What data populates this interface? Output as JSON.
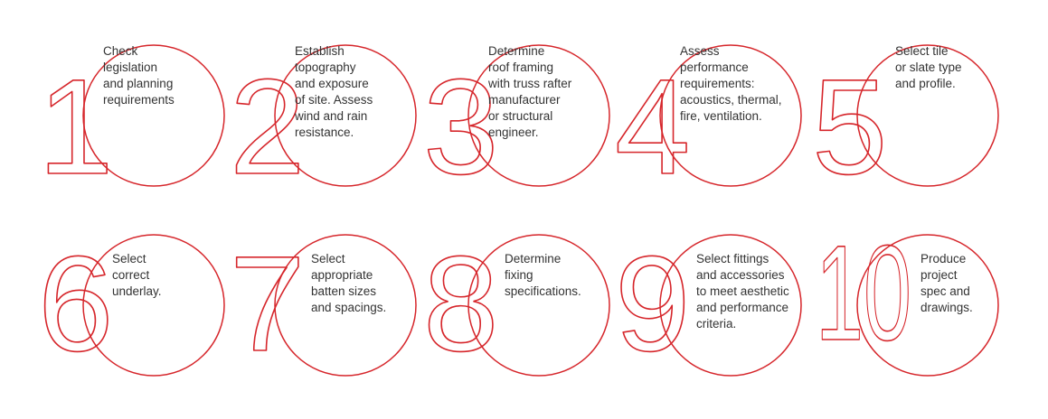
{
  "steps": [
    {
      "number": "1",
      "text": "Check\nlegislation\nand planning\nrequirements"
    },
    {
      "number": "2",
      "text": "Establish\ntopography\nand exposure\nof site. Assess\nwind and rain\nresistance."
    },
    {
      "number": "3",
      "text": "Determine\nroof framing\nwith truss rafter\nmanufacturer\nor structural\nengineer."
    },
    {
      "number": "4",
      "text": "Assess\nperformance\nrequirements:\nacoustics, thermal,\nfire, ventilation."
    },
    {
      "number": "5",
      "text": "Select tile\nor slate type\nand profile."
    },
    {
      "number": "6",
      "text": "Select\ncorrect\nunderlay."
    },
    {
      "number": "7",
      "text": "Select\nappropriate\nbatten sizes\nand spacings."
    },
    {
      "number": "8",
      "text": "Determine\nfixing\nspecifications."
    },
    {
      "number": "9",
      "text": "Select fittings\nand accessories\nto meet aesthetic\nand performance\ncriteria."
    },
    {
      "number": "10",
      "text": "Produce\nproject\nspec and\ndrawings."
    }
  ],
  "colors": {
    "accent": "#d6262b",
    "text": "#333333"
  }
}
